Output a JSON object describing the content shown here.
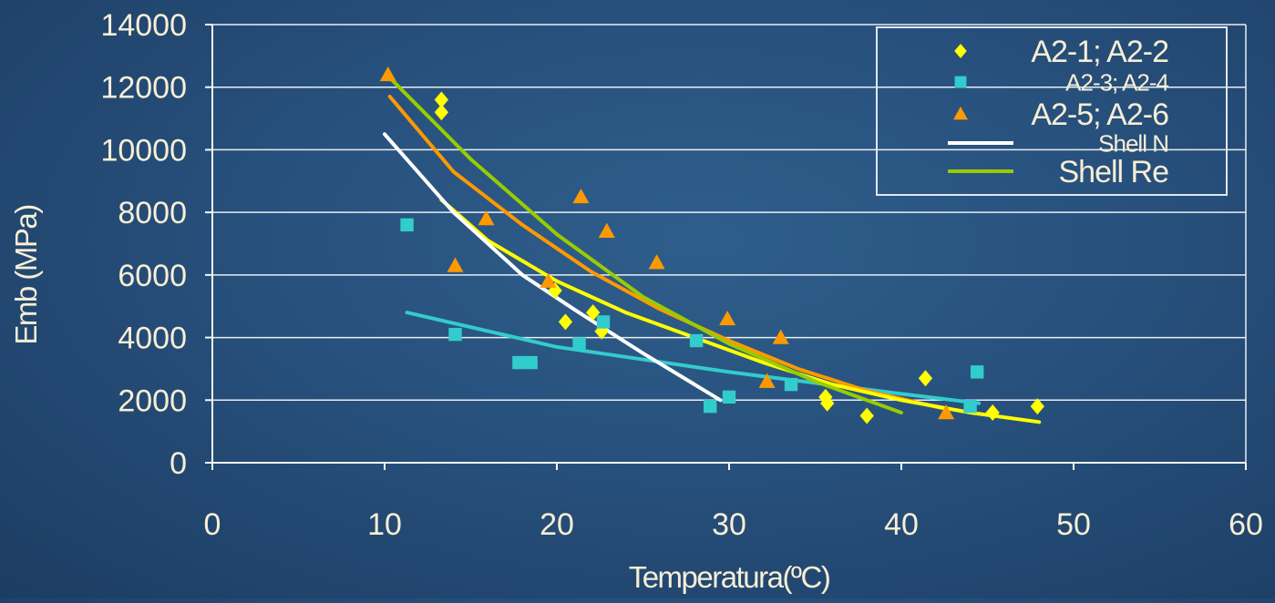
{
  "chart_data": {
    "type": "scatter",
    "xlabel": "Temperatura(ºC)",
    "ylabel": "Emb (MPa)",
    "xlim": [
      0,
      60
    ],
    "ylim": [
      0,
      14000
    ],
    "x_ticks": [
      0,
      10,
      20,
      30,
      40,
      50,
      60
    ],
    "y_ticks": [
      0,
      2000,
      4000,
      6000,
      8000,
      10000,
      12000,
      14000
    ],
    "x_tick_labels": [
      "0",
      "10",
      "20",
      "30",
      "40",
      "50",
      "60"
    ],
    "y_tick_labels": [
      "0",
      "2000",
      "4000",
      "6000",
      "8000",
      "10000",
      "12000",
      "14000"
    ],
    "grid": "horizontal",
    "legend_position": "top-right",
    "colors": {
      "text": "#f7eed6",
      "grid": "#e9eef4",
      "axis": "#f5f5f5",
      "legend_border": "#dfe8f0",
      "yellow": "#ffff00",
      "cyan": "#33cccc",
      "orange": "#ff9900",
      "white": "#ffffff",
      "green": "#99cc00"
    },
    "legend": [
      {
        "label": "A2-1; A2-2",
        "marker": "diamond",
        "color": "#ffff00"
      },
      {
        "label": "A2-3; A2-4",
        "marker": "square",
        "color": "#33cccc"
      },
      {
        "label": "A2-5; A2-6",
        "marker": "triangle",
        "color": "#ff9900"
      },
      {
        "label": "Shell N",
        "marker": "line",
        "color": "#ffffff"
      },
      {
        "label": "Shell Re",
        "marker": "line",
        "color": "#99cc00"
      }
    ],
    "series": [
      {
        "name": "A2-1; A2-2",
        "kind": "scatter",
        "marker": "diamond",
        "color": "#ffff00",
        "x": [
          13.3,
          13.3,
          19.9,
          20.5,
          22.1,
          22.6,
          35.6,
          35.7,
          38.0,
          41.4,
          45.3,
          47.9
        ],
        "y": [
          11600,
          11200,
          5500,
          4500,
          4800,
          4200,
          2100,
          1900,
          1500,
          2700,
          1600,
          1800
        ]
      },
      {
        "name": "A2-3; A2-4",
        "kind": "scatter",
        "marker": "square",
        "color": "#33cccc",
        "x": [
          11.3,
          14.1,
          17.8,
          18.5,
          21.3,
          22.7,
          28.1,
          28.9,
          30.0,
          33.6,
          44.0,
          44.4
        ],
        "y": [
          7600,
          4100,
          3200,
          3200,
          3800,
          4500,
          3900,
          1800,
          2100,
          2500,
          1800,
          2900
        ]
      },
      {
        "name": "A2-5; A2-6",
        "kind": "scatter",
        "marker": "triangle",
        "color": "#ff9900",
        "x": [
          10.2,
          14.1,
          15.9,
          19.5,
          21.4,
          22.9,
          25.8,
          29.9,
          32.2,
          33.0,
          42.6
        ],
        "y": [
          12400,
          6300,
          7800,
          5800,
          8500,
          7400,
          6400,
          4600,
          2600,
          4000,
          1600
        ]
      },
      {
        "name": "A2-3; A2-4 trend",
        "kind": "line",
        "color": "#33cccc",
        "x": [
          11.3,
          20,
          30,
          40,
          44.5
        ],
        "y": [
          4800,
          3700,
          2900,
          2200,
          1900
        ]
      },
      {
        "name": "A2-5; A2-6 trend",
        "kind": "line",
        "color": "#ff9900",
        "x": [
          10.3,
          14,
          18,
          22,
          26,
          30,
          34,
          38,
          42.7
        ],
        "y": [
          11700,
          9300,
          7600,
          6100,
          4900,
          3900,
          3000,
          2300,
          1700
        ]
      },
      {
        "name": "A2-1; A2-2 trend",
        "kind": "line",
        "color": "#ffff00",
        "x": [
          13.3,
          16,
          20,
          24,
          28,
          32,
          36,
          40,
          44,
          48
        ],
        "y": [
          8400,
          7100,
          5800,
          4800,
          4000,
          3200,
          2500,
          2000,
          1600,
          1300
        ]
      },
      {
        "name": "Shell N",
        "kind": "line",
        "color": "#ffffff",
        "x": [
          10,
          14,
          18,
          21,
          25,
          29.5
        ],
        "y": [
          10500,
          8000,
          6000,
          4900,
          3500,
          2000
        ]
      },
      {
        "name": "Shell Re",
        "kind": "line",
        "color": "#99cc00",
        "x": [
          10.3,
          15,
          20,
          25,
          30,
          35,
          40
        ],
        "y": [
          12300,
          9700,
          7300,
          5300,
          3800,
          2600,
          1600
        ]
      }
    ]
  }
}
